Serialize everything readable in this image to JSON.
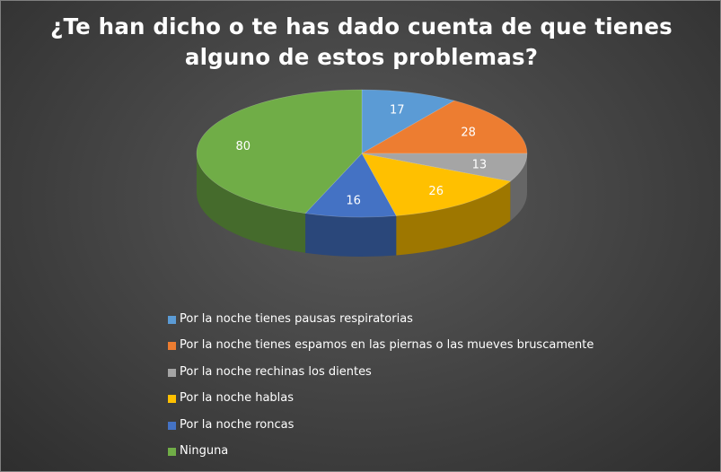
{
  "title": "¿Te han dicho o te has dado cuenta de que tienes alguno de estos problemas?",
  "chart_data": {
    "type": "pie",
    "title": "¿Te han dicho o te has dado cuenta de que tienes alguno de estos problemas?",
    "categories": [
      "Por la noche tienes pausas respiratorias",
      "Por la noche tienes espamos en las piernas o las mueves bruscamente",
      "Por la noche rechinas los dientes",
      "Por la noche hablas",
      "Por la noche roncas",
      "Ninguna"
    ],
    "values": [
      17,
      28,
      13,
      26,
      16,
      80
    ],
    "colors": [
      "#5b9bd5",
      "#ed7d31",
      "#a5a5a5",
      "#ffc000",
      "#4472c4",
      "#70ad47"
    ],
    "legend_position": "bottom",
    "data_labels": true
  }
}
